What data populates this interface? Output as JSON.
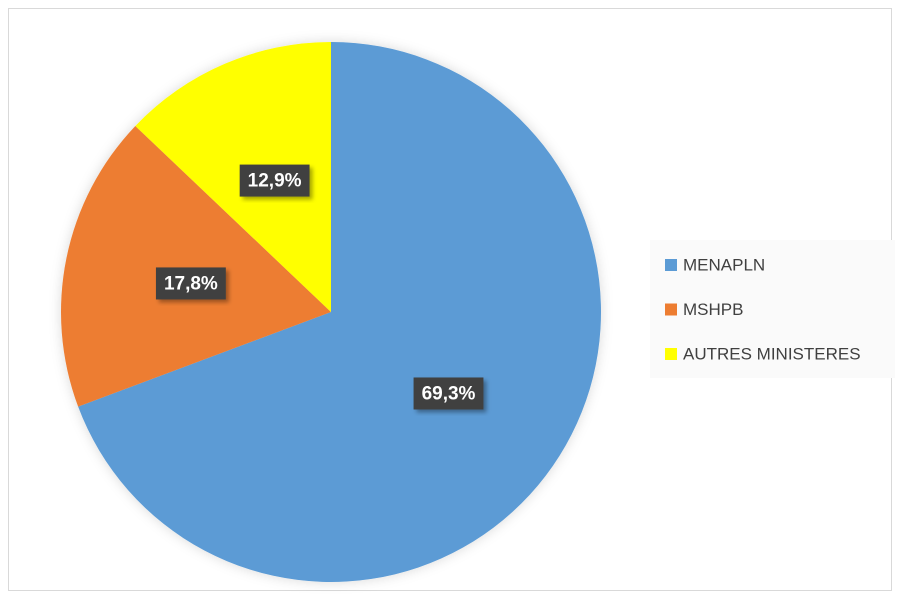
{
  "chart_data": {
    "type": "pie",
    "categories": [
      "MENAPLN",
      "MSHPB",
      "AUTRES MINISTERES"
    ],
    "values": [
      69.3,
      17.8,
      12.9
    ],
    "value_labels": [
      "69,3%",
      "17,8%",
      "12,9%"
    ],
    "colors": [
      "#5b9bd5",
      "#ed7d31",
      "#ffff00"
    ],
    "legend": "right"
  }
}
